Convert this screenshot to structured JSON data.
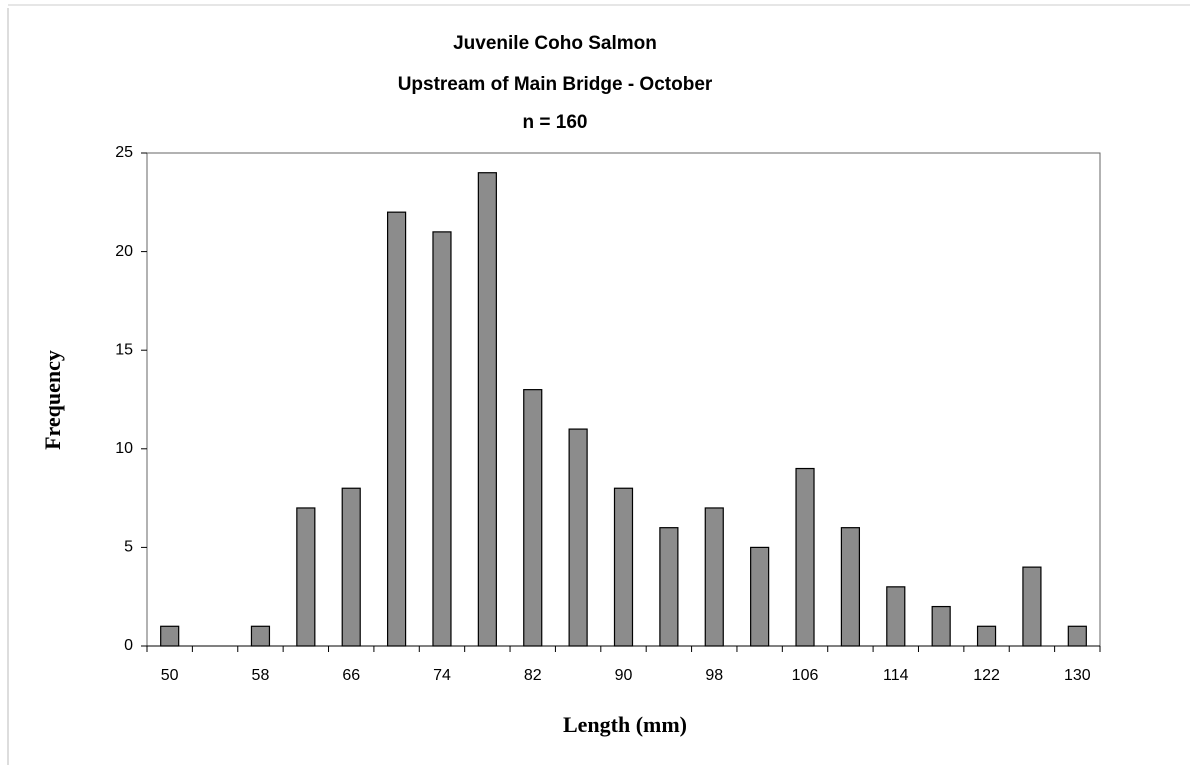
{
  "chart_data": {
    "type": "bar",
    "title": [
      "Juvenile Coho Salmon",
      "Upstream of Main Bridge - October",
      "n  =  160"
    ],
    "x_label": "Length (mm)",
    "y_label": "Frequency",
    "categories": [
      "50",
      null,
      "58",
      null,
      "66",
      null,
      "74",
      null,
      "82",
      null,
      "90",
      null,
      "98",
      null,
      "106",
      null,
      "114",
      null,
      "122",
      null,
      "130"
    ],
    "values": [
      1,
      0,
      1,
      7,
      8,
      22,
      21,
      24,
      13,
      11,
      8,
      6,
      7,
      5,
      9,
      6,
      3,
      2,
      1,
      4,
      1
    ],
    "color": "#8c8c8c",
    "ylim": [
      0,
      25
    ],
    "yticks": [
      0,
      5,
      10,
      15,
      20,
      25
    ],
    "grid": false
  }
}
